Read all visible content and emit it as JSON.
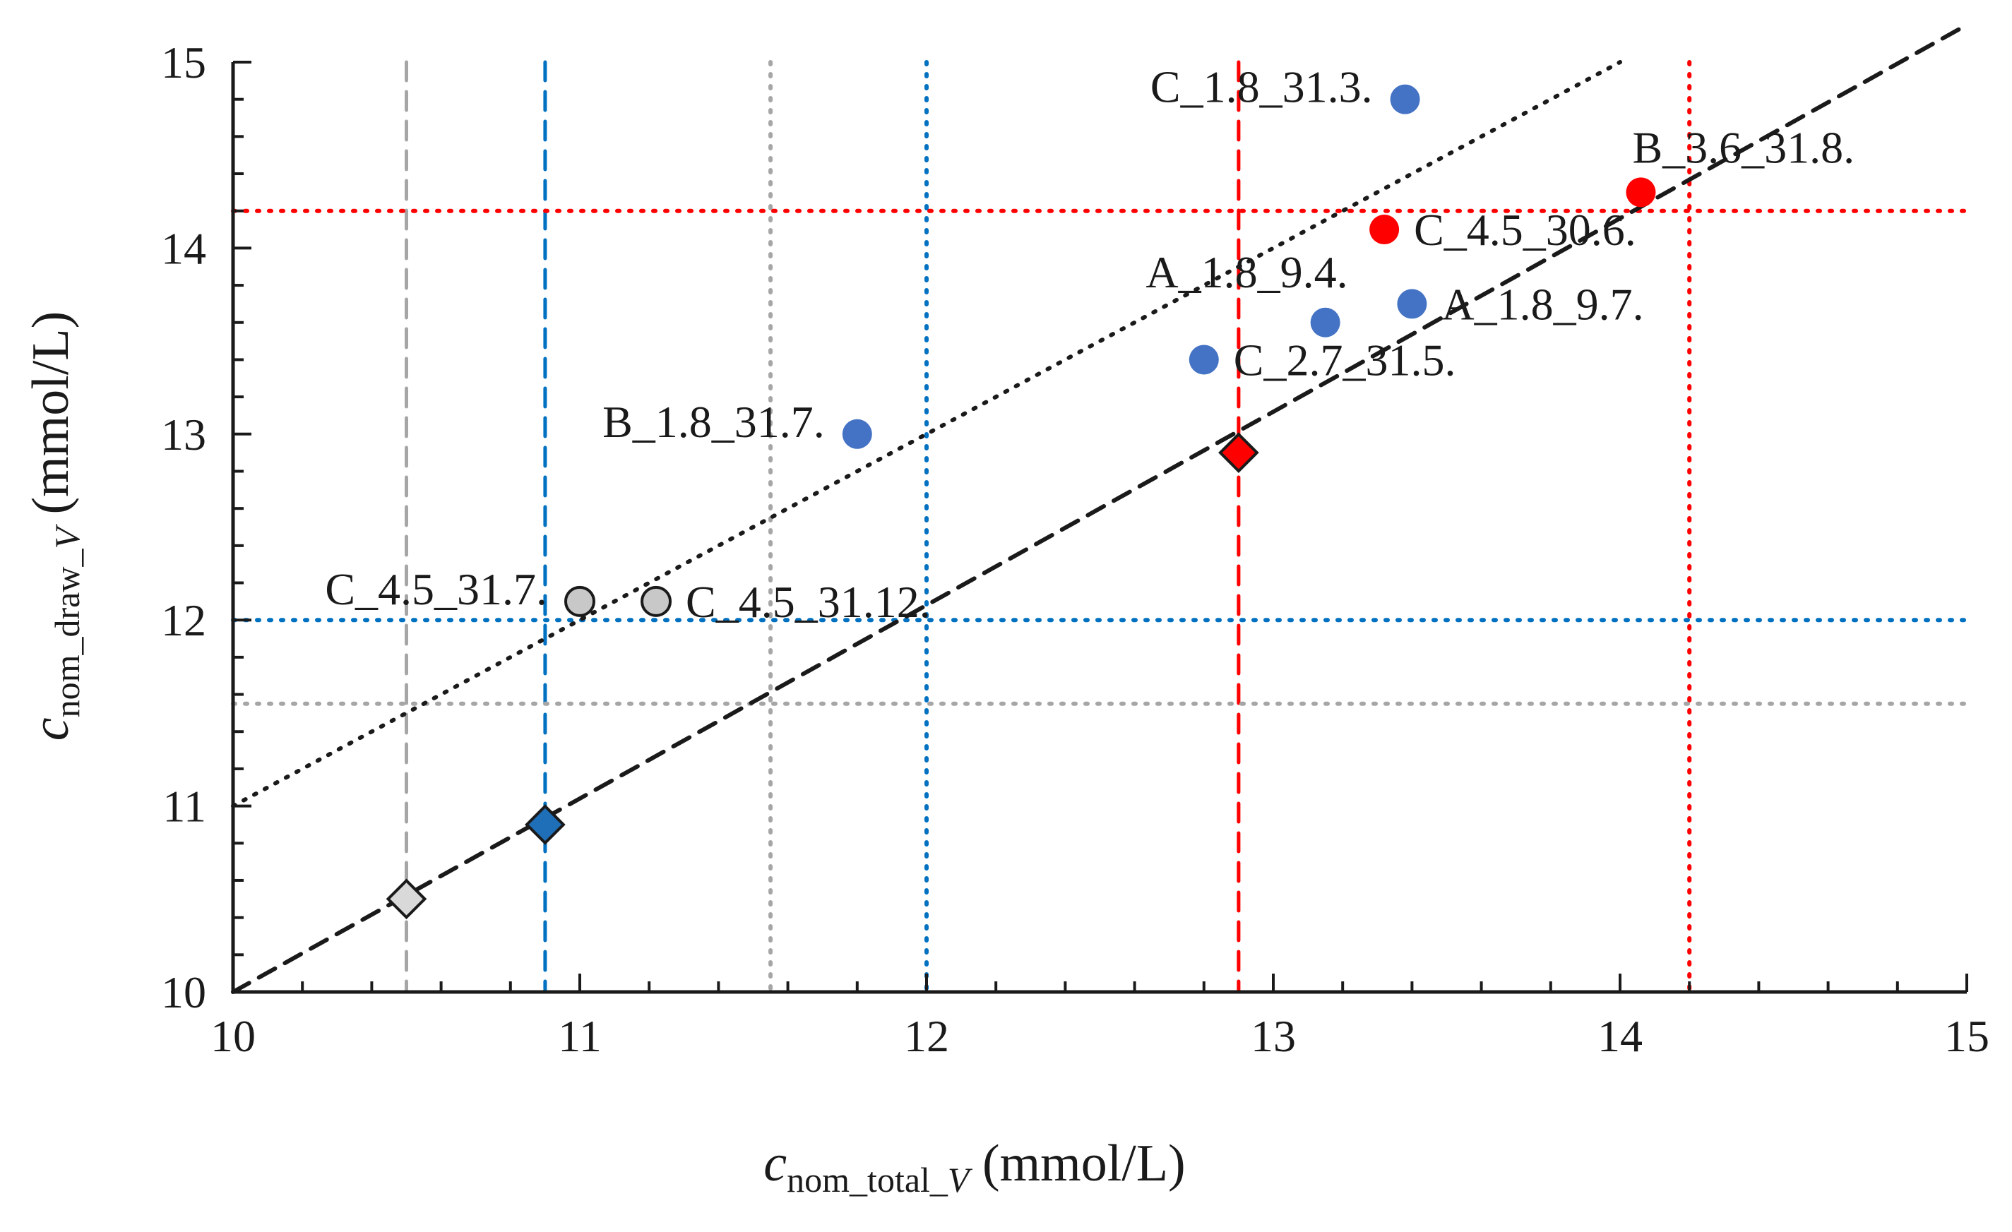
{
  "chart_data": {
    "type": "scatter",
    "title": "",
    "xlabel": {
      "base": "c",
      "sub_plain": "nom_total_",
      "sub_italic": "V",
      "unit": " (mmol/L)"
    },
    "ylabel": {
      "base": "c",
      "sub_plain": "nom_draw_",
      "sub_italic": "V",
      "unit": " (mmol/L)"
    },
    "xlim": [
      10,
      15
    ],
    "ylim": [
      10,
      15
    ],
    "x_ticks": [
      "10",
      "11",
      "12",
      "13",
      "14",
      "15"
    ],
    "y_ticks": [
      "10",
      "11",
      "12",
      "13",
      "14",
      "15"
    ],
    "minor_tick_step": 0.2,
    "grid": false,
    "colors": {
      "blue_point": "#4472c4",
      "red_point": "#ff0000",
      "gray_point": "#c8c8c8",
      "blue_line": "#0070c0",
      "red_line": "#ff0000",
      "gray_line": "#a6a6a6",
      "black_line": "#1a1a1a",
      "blue_diamond": "#1f6fb8",
      "gray_diamond": "#d9d9d9"
    },
    "trend_lines": [
      {
        "name": "dotted-trend",
        "style": "dotted",
        "color": "black_line",
        "x": [
          10,
          14
        ],
        "y": [
          11,
          15
        ]
      },
      {
        "name": "dashed-trend",
        "style": "dashed",
        "color": "black_line",
        "x": [
          10,
          15
        ],
        "y": [
          10,
          15.2
        ]
      }
    ],
    "reference_lines": [
      {
        "name": "gray-dashed",
        "orientation": "vertical",
        "value": 10.5,
        "style": "dashed",
        "color": "gray_line"
      },
      {
        "name": "blue-dashed",
        "orientation": "vertical",
        "value": 10.9,
        "style": "dashed",
        "color": "blue_line"
      },
      {
        "name": "gray-dotted",
        "orientation": "vertical",
        "value": 11.55,
        "style": "dotted",
        "color": "gray_line"
      },
      {
        "name": "blue-dotted",
        "orientation": "vertical",
        "value": 12.0,
        "style": "dotted",
        "color": "blue_line"
      },
      {
        "name": "red-dashed",
        "orientation": "vertical",
        "value": 12.9,
        "style": "dashed",
        "color": "red_line"
      },
      {
        "name": "red-dotted",
        "orientation": "vertical",
        "value": 14.2,
        "style": "dotted",
        "color": "red_line"
      },
      {
        "name": "red-dotted",
        "orientation": "horizontal",
        "value": 14.2,
        "style": "dotted",
        "color": "red_line"
      },
      {
        "name": "blue-dotted",
        "orientation": "horizontal",
        "value": 12.0,
        "style": "dotted",
        "color": "blue_line"
      },
      {
        "name": "gray-dotted",
        "orientation": "horizontal",
        "value": 11.55,
        "style": "dotted",
        "color": "gray_line"
      }
    ],
    "diamonds": [
      {
        "x": 10.5,
        "y": 10.5,
        "color": "gray_diamond"
      },
      {
        "x": 10.9,
        "y": 10.9,
        "color": "blue_diamond"
      },
      {
        "x": 12.9,
        "y": 12.9,
        "color": "red_point"
      }
    ],
    "points": [
      {
        "label": "C_1.8_31.3.",
        "x": 13.38,
        "y": 14.8,
        "color": "blue_point",
        "label_side": "left"
      },
      {
        "label": "B_3.6_31.8.",
        "x": 14.06,
        "y": 14.3,
        "color": "red_point",
        "label_side": "above"
      },
      {
        "label": "C_4.5_30.6.",
        "x": 13.32,
        "y": 14.1,
        "color": "red_point",
        "label_side": "right"
      },
      {
        "label": "A_1.8_9.4.",
        "x": 13.15,
        "y": 13.6,
        "color": "blue_point",
        "label_side": "above-left"
      },
      {
        "label": "A_1.8_9.7.",
        "x": 13.4,
        "y": 13.7,
        "color": "blue_point",
        "label_side": "right"
      },
      {
        "label": "C_2.7_31.5.",
        "x": 12.8,
        "y": 13.4,
        "color": "blue_point",
        "label_side": "right"
      },
      {
        "label": "B_1.8_31.7.",
        "x": 11.8,
        "y": 13.0,
        "color": "blue_point",
        "label_side": "left"
      },
      {
        "label": "C_4.5_31.7.",
        "x": 11.0,
        "y": 12.1,
        "color": "gray_point",
        "label_side": "left"
      },
      {
        "label": "C_4.5_31.12.",
        "x": 11.22,
        "y": 12.1,
        "color": "gray_point",
        "label_side": "right"
      }
    ]
  }
}
